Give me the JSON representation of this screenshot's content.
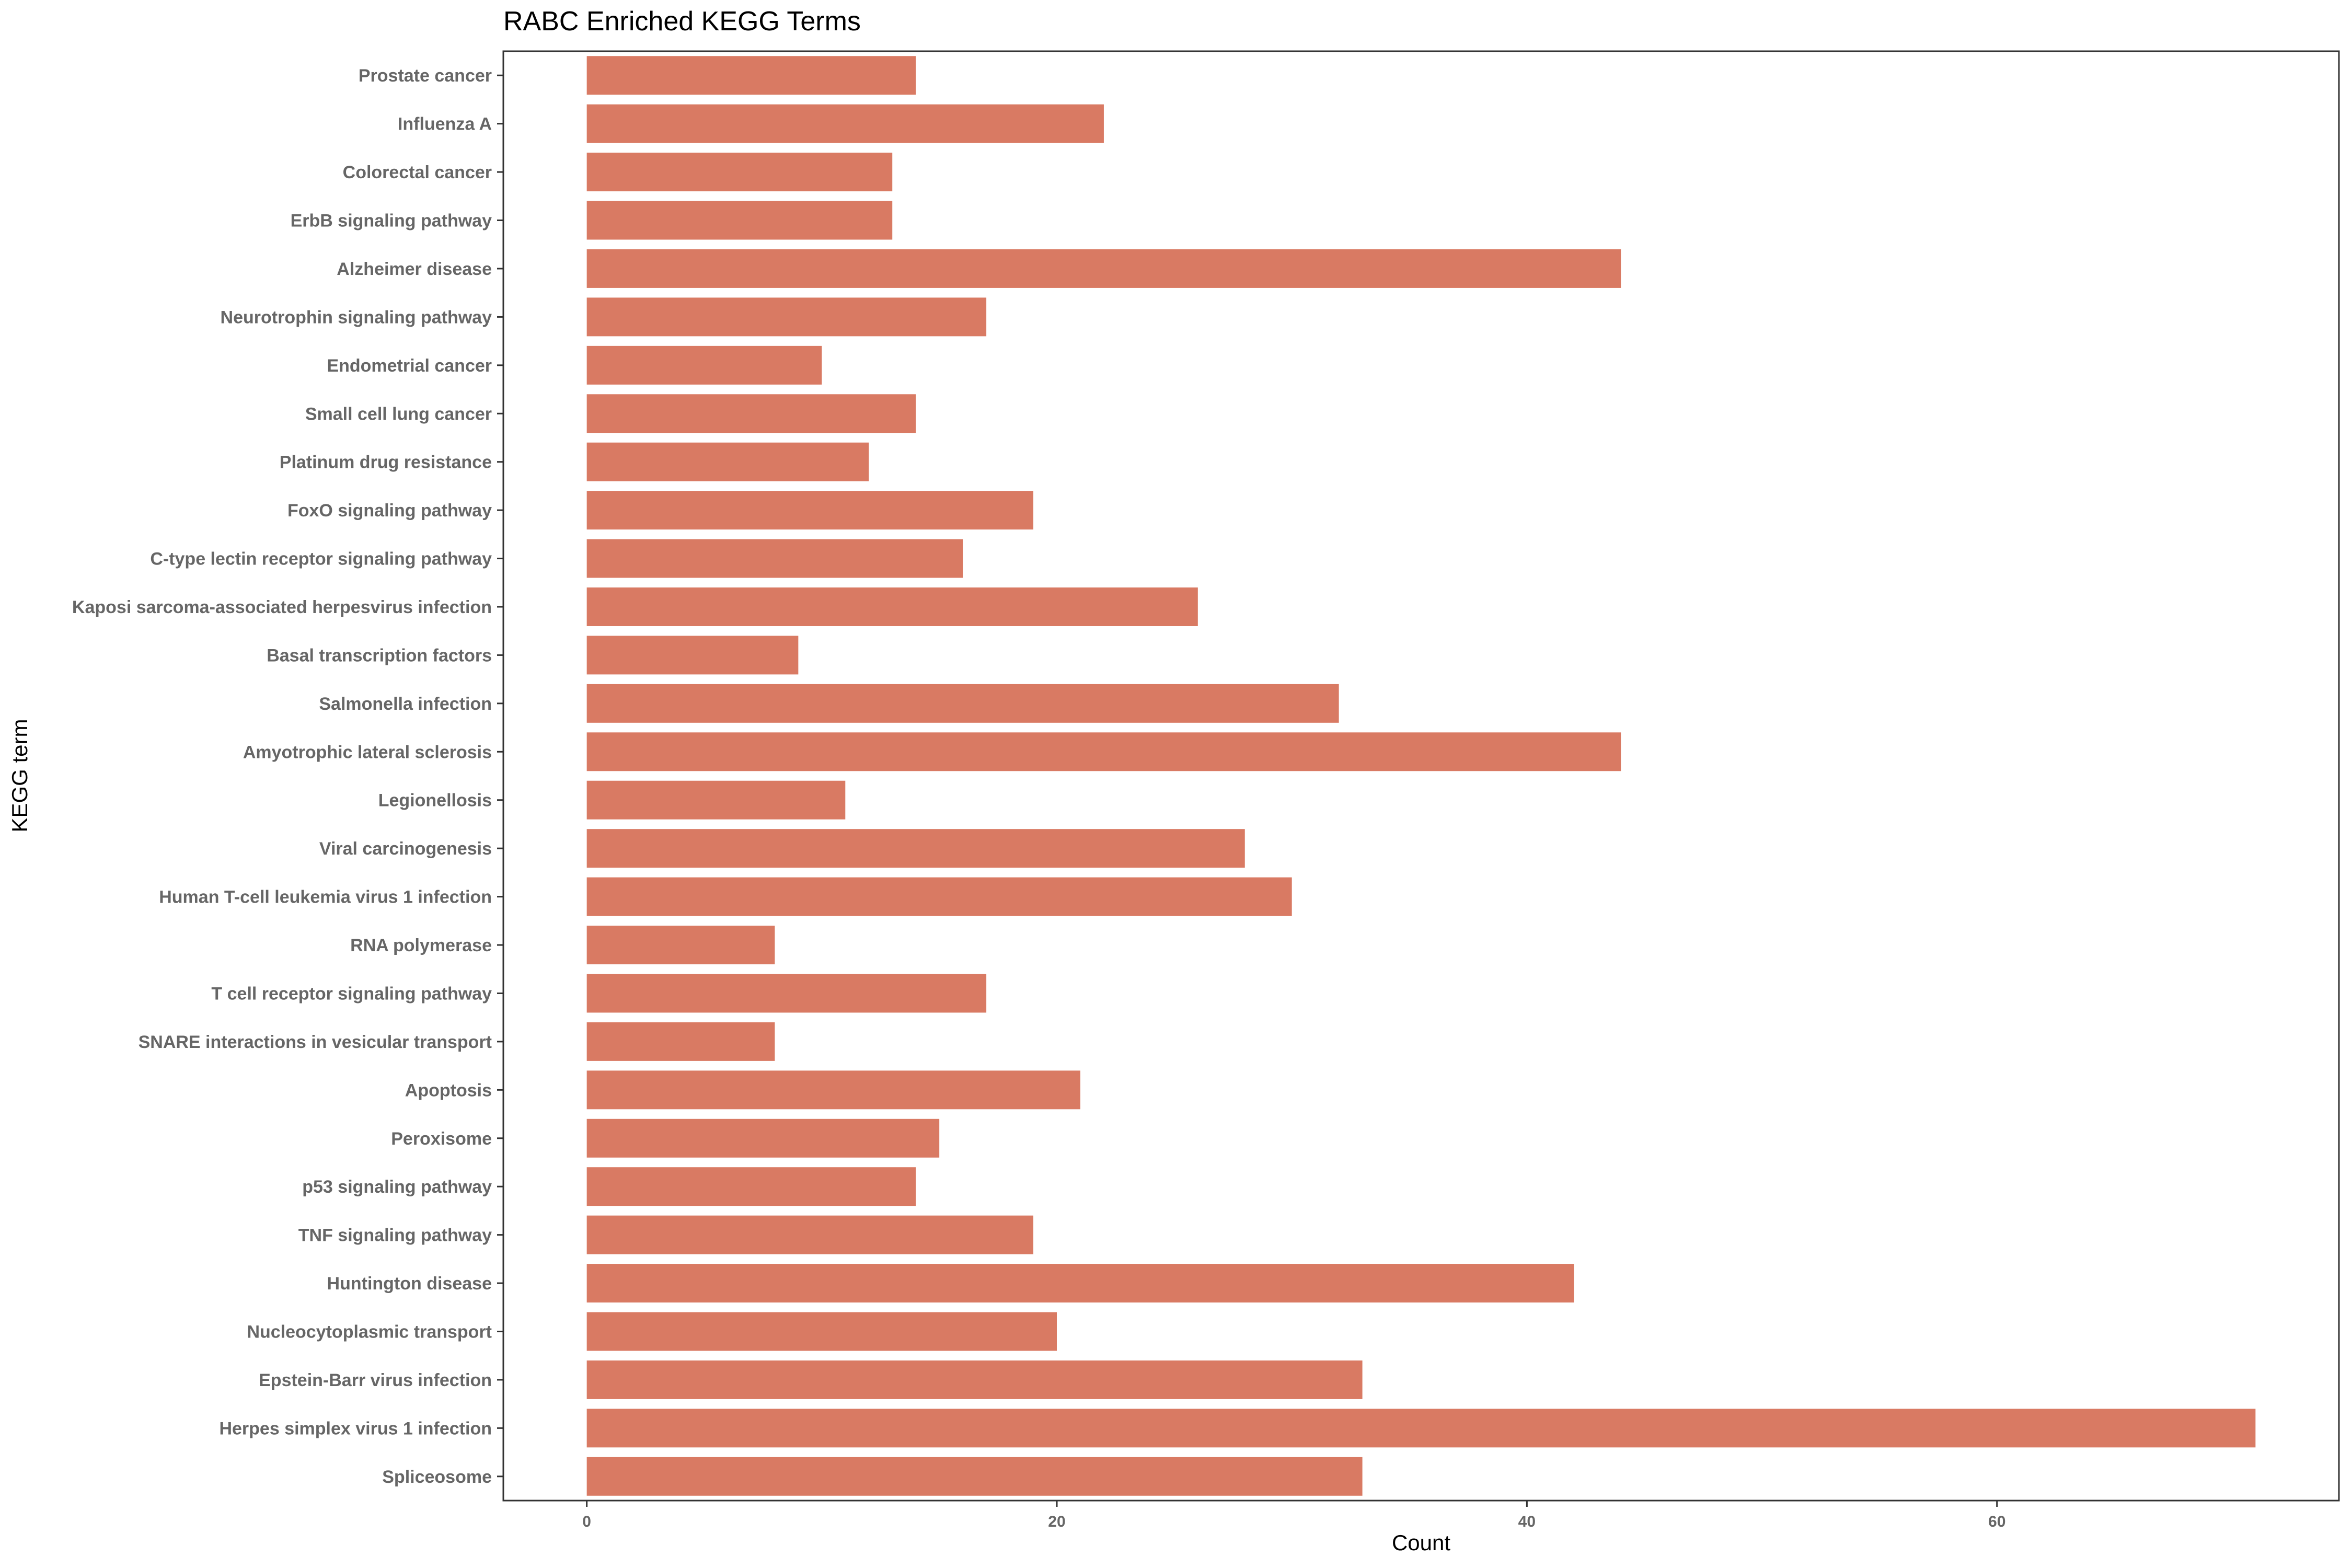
{
  "chart_data": {
    "type": "bar",
    "orientation": "horizontal",
    "title": "RABC Enriched KEGG Terms",
    "xlabel": "Count",
    "ylabel": "KEGG term",
    "xlim": [
      -3.55,
      74.55
    ],
    "xticks": [
      0,
      20,
      40,
      60
    ],
    "grid": false,
    "bar_color": "#d97a63",
    "categories": [
      "Prostate cancer",
      "Influenza A",
      "Colorectal cancer",
      "ErbB signaling pathway",
      "Alzheimer disease",
      "Neurotrophin signaling pathway",
      "Endometrial cancer",
      "Small cell lung cancer",
      "Platinum drug resistance",
      "FoxO signaling pathway",
      "C-type lectin receptor signaling pathway",
      "Kaposi sarcoma-associated herpesvirus infection",
      "Basal transcription factors",
      "Salmonella infection",
      "Amyotrophic lateral sclerosis",
      "Legionellosis",
      "Viral carcinogenesis",
      "Human T-cell leukemia virus 1 infection",
      "RNA polymerase",
      "T cell receptor signaling pathway",
      "SNARE interactions in vesicular transport",
      "Apoptosis",
      "Peroxisome",
      "p53 signaling pathway",
      "TNF signaling pathway",
      "Huntington disease",
      "Nucleocytoplasmic transport",
      "Epstein-Barr virus infection",
      "Herpes simplex virus 1 infection",
      "Spliceosome"
    ],
    "values": [
      14,
      22,
      13,
      13,
      44,
      17,
      10,
      14,
      12,
      19,
      16,
      26,
      9,
      32,
      44,
      11,
      28,
      30,
      8,
      17,
      8,
      21,
      15,
      14,
      19,
      42,
      20,
      33,
      71,
      33
    ]
  }
}
